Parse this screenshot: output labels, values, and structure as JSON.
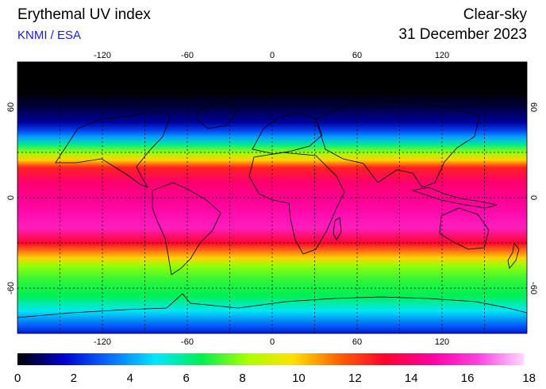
{
  "header": {
    "title": "Erythemal UV index",
    "subtitle": "KNMI / ESA",
    "mode": "Clear-sky",
    "date": "31 December 2023"
  },
  "map": {
    "longitude_ticks": [
      "-120",
      "-60",
      "0",
      "60",
      "120"
    ],
    "latitude_ticks": [
      "60",
      "0",
      "-60"
    ],
    "extent": {
      "lon_min": -180,
      "lon_max": 180,
      "lat_min": -90,
      "lat_max": 90
    },
    "grid_spacing_deg": 30,
    "projection": "equirectangular"
  },
  "colorbar": {
    "ticks": [
      "0",
      "2",
      "4",
      "6",
      "8",
      "10",
      "12",
      "14",
      "16",
      "18"
    ],
    "min": 0,
    "max": 18,
    "colors": [
      "#000000",
      "#0000d0",
      "#0a6cff",
      "#00e6ff",
      "#00f050",
      "#aaff00",
      "#ffe000",
      "#ff6000",
      "#ff0030",
      "#ff00a0",
      "#ff40e0",
      "#ffd8ff"
    ]
  },
  "uv_profile": {
    "description_units": "latitude (deg) vs clear-sky UV index",
    "points": [
      [
        90,
        0
      ],
      [
        70,
        0
      ],
      [
        60,
        0.5
      ],
      [
        50,
        1.2
      ],
      [
        45,
        2.5
      ],
      [
        40,
        4
      ],
      [
        35,
        6
      ],
      [
        30,
        8
      ],
      [
        25,
        10
      ],
      [
        20,
        12.5
      ],
      [
        10,
        14
      ],
      [
        0,
        14.5
      ],
      [
        -10,
        15
      ],
      [
        -20,
        15.5
      ],
      [
        -30,
        13
      ],
      [
        -40,
        10
      ],
      [
        -45,
        8
      ],
      [
        -55,
        7
      ],
      [
        -65,
        6.5
      ],
      [
        -75,
        5
      ],
      [
        -85,
        3
      ],
      [
        -90,
        2
      ]
    ]
  }
}
